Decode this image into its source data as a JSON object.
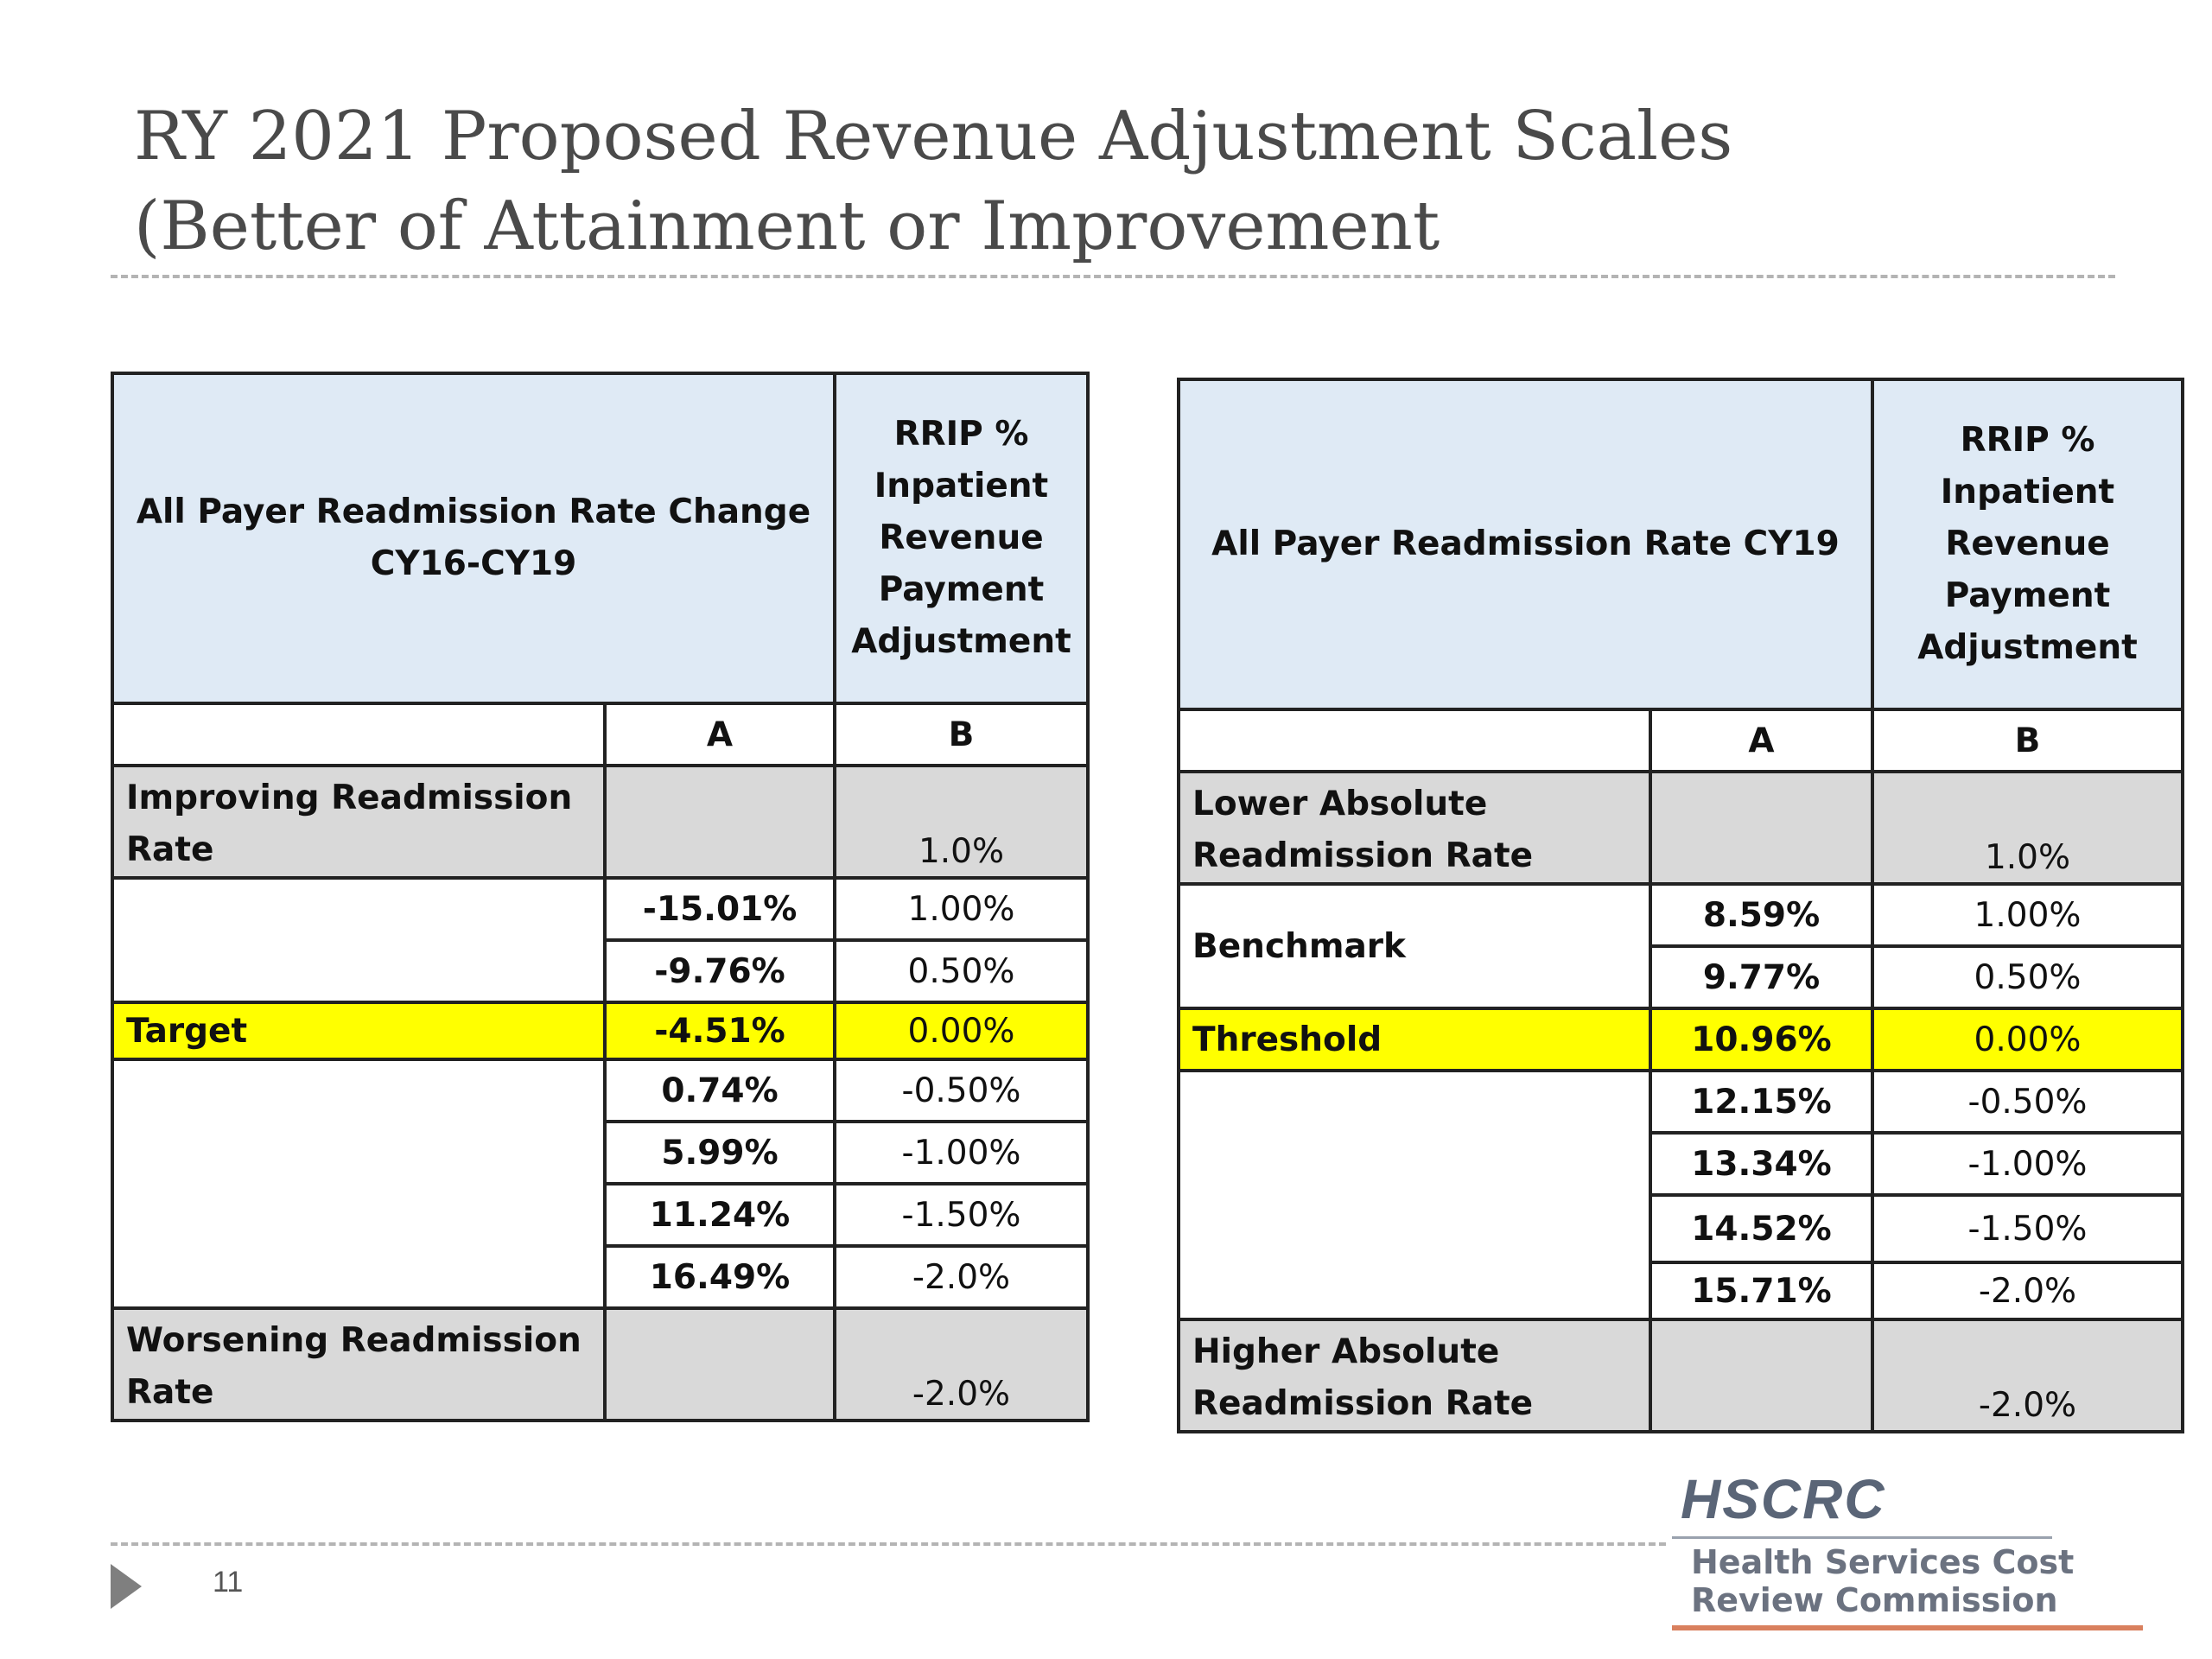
{
  "slide": {
    "title_line1": "RY 2021 Proposed Revenue Adjustment Scales",
    "title_line2": "(Better of Attainment or Improvement",
    "number": "11"
  },
  "improvement_table": {
    "header_measure": "All Payer Readmission Rate Change CY16-CY19",
    "header_payment": "RRIP % Inpatient Revenue Payment Adjustment",
    "col_a": "A",
    "col_b": "B",
    "top_band": {
      "label": "Improving Readmission Rate",
      "payment": "1.0%"
    },
    "rows": [
      {
        "label": "",
        "a": "-15.01%",
        "b": "1.00%"
      },
      {
        "a": "-9.76%",
        "b": "0.50%"
      },
      {
        "label": "Target",
        "a": "-4.51%",
        "b": "0.00%",
        "highlight": true
      },
      {
        "label": "",
        "a": "0.74%",
        "b": "-0.50%"
      },
      {
        "a": "5.99%",
        "b": "-1.00%"
      },
      {
        "a": "11.24%",
        "b": "-1.50%"
      },
      {
        "a": "16.49%",
        "b": "-2.0%"
      }
    ],
    "bottom_band": {
      "label": "Worsening Readmission Rate",
      "payment": "-2.0%"
    }
  },
  "attainment_table": {
    "header_measure": "All Payer Readmission Rate CY19",
    "header_payment": "RRIP % Inpatient Revenue Payment Adjustment",
    "col_a": "A",
    "col_b": "B",
    "top_band": {
      "label": "Lower Absolute Readmission Rate",
      "payment": "1.0%"
    },
    "rows": [
      {
        "label": "Benchmark",
        "a": "8.59%",
        "b": "1.00%"
      },
      {
        "a": "9.77%",
        "b": "0.50%"
      },
      {
        "label": "Threshold",
        "a": "10.96%",
        "b": "0.00%",
        "highlight": true
      },
      {
        "label": "",
        "a": "12.15%",
        "b": "-0.50%"
      },
      {
        "a": "13.34%",
        "b": "-1.00%"
      },
      {
        "a": "14.52%",
        "b": "-1.50%"
      },
      {
        "a": "15.71%",
        "b": "-2.0%"
      }
    ],
    "bottom_band": {
      "label": "Higher Absolute Readmission Rate",
      "payment": "-2.0%"
    }
  },
  "logo": {
    "mark": "HSCRC",
    "line1": "Health Services Cost",
    "line2": "Review Commission"
  },
  "colors": {
    "header_fill": "#dfeaf5",
    "band_fill": "#d9d9d9",
    "highlight_fill": "#ffff00",
    "logo_accent": "#d9805e"
  }
}
